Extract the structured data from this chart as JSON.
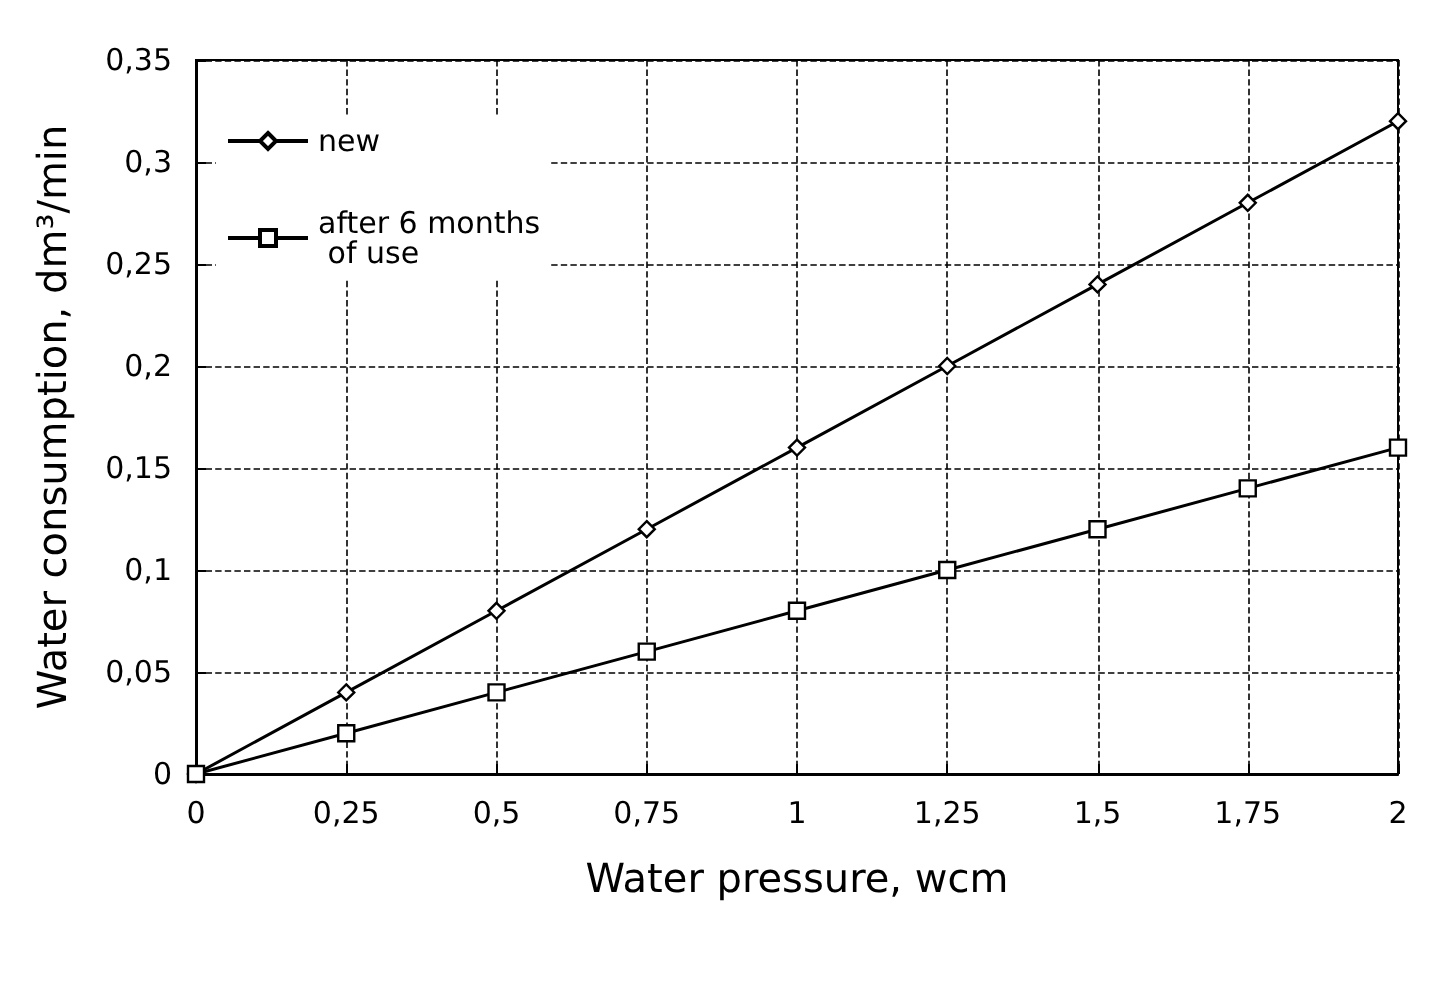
{
  "chart_data": {
    "type": "line",
    "xlabel": "Water pressure, wcm",
    "ylabel": "Water consumption, dm³/min",
    "x": [
      0,
      0.25,
      0.5,
      0.75,
      1,
      1.25,
      1.5,
      1.75,
      2
    ],
    "series": [
      {
        "name": "new",
        "color": "#000000",
        "marker": "diamond",
        "values": [
          0,
          0.04,
          0.08,
          0.12,
          0.16,
          0.2,
          0.24,
          0.28,
          0.32
        ]
      },
      {
        "name": "after 6 months of use",
        "color": "#000000",
        "marker": "square",
        "values": [
          0,
          0.02,
          0.04,
          0.06,
          0.08,
          0.1,
          0.12,
          0.14,
          0.16
        ]
      }
    ],
    "xlim": [
      0,
      2
    ],
    "xticks": [
      0,
      {
        "value": 0.25,
        "label": "0,25"
      },
      {
        "value": 0.5,
        "label": "0,5"
      },
      {
        "value": 0.75,
        "label": "0,75"
      },
      1,
      {
        "value": 1.25,
        "label": "1,25"
      },
      {
        "value": 1.5,
        "label": "1,5"
      },
      {
        "value": 1.75,
        "label": "1,75"
      },
      2
    ],
    "ylim": [
      0,
      0.35
    ],
    "yticks": [
      0,
      {
        "value": 0.05,
        "label": "0,05"
      },
      {
        "value": 0.1,
        "label": "0,1"
      },
      {
        "value": 0.15,
        "label": "0,15"
      },
      {
        "value": 0.2,
        "label": "0,2"
      },
      {
        "value": 0.25,
        "label": "0,25"
      },
      {
        "value": 0.3,
        "label": "0,3"
      },
      {
        "value": 0.35,
        "label": "0,35"
      }
    ],
    "grid": true,
    "legend": "top left",
    "line_style": "solid"
  }
}
